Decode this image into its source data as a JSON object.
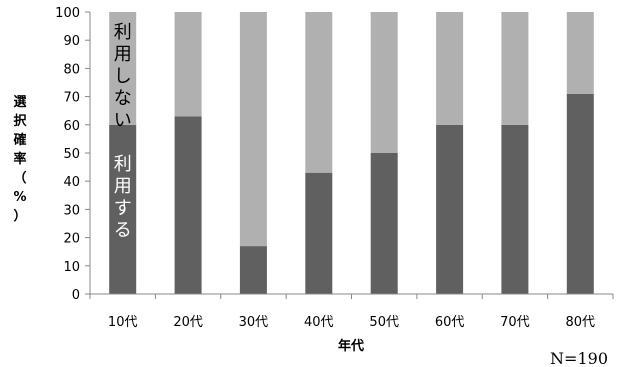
{
  "chart_data": {
    "type": "bar",
    "stacked": true,
    "categories": [
      "10代",
      "20代",
      "30代",
      "40代",
      "50代",
      "60代",
      "70代",
      "80代"
    ],
    "series": [
      {
        "name": "利用する",
        "values": [
          60,
          63,
          17,
          43,
          50,
          60,
          60,
          71
        ],
        "color": "#606060"
      },
      {
        "name": "利用しない",
        "values": [
          40,
          37,
          83,
          57,
          50,
          40,
          40,
          29
        ],
        "color": "#b0b0b0"
      }
    ],
    "xlabel": "年代",
    "ylabel": "選択確率（%）",
    "ylim": [
      0,
      100
    ],
    "yticks": [
      0,
      10,
      20,
      30,
      40,
      50,
      60,
      70,
      80,
      90,
      100
    ],
    "grid": false,
    "legend": "none",
    "annotations": [
      "利用しない",
      "利用する"
    ]
  },
  "note": "N=190"
}
